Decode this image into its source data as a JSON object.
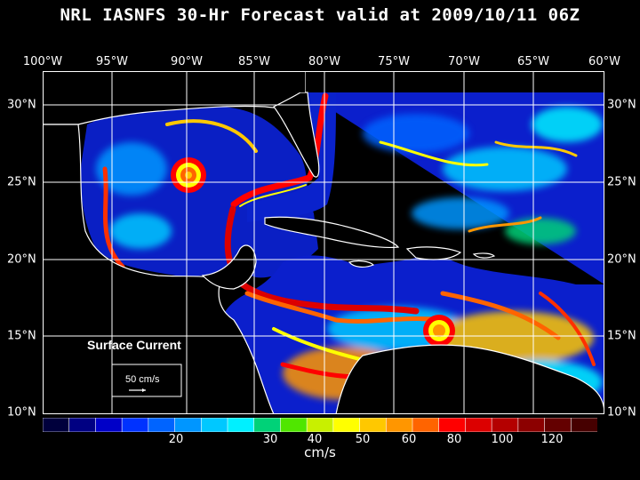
{
  "title": "NRL IASNFS  30-Hr Forecast valid at 2009/10/11 06Z",
  "lon_labels": [
    "100°W",
    "95°W",
    "90°W",
    "85°W",
    "80°W",
    "75°W",
    "70°W",
    "65°W",
    "60°W"
  ],
  "lat_labels": [
    "30°N",
    "25°N",
    "20°N",
    "15°N",
    "10°N"
  ],
  "legend": {
    "label": "Surface Current",
    "ref_vector": "50 cm/s"
  },
  "colorbar": {
    "ticks": [
      "20",
      "30",
      "40",
      "50",
      "60",
      "80",
      "100",
      "120"
    ],
    "units": "cm/s",
    "colors": [
      "#00003c",
      "#000082",
      "#0000c8",
      "#0032ff",
      "#0064ff",
      "#0096ff",
      "#00c8ff",
      "#00f0ff",
      "#00d278",
      "#50e600",
      "#c8f000",
      "#ffff00",
      "#ffc800",
      "#ff9600",
      "#ff6400",
      "#ff0000",
      "#dc0000",
      "#b40000",
      "#8c0000",
      "#640000",
      "#460000"
    ]
  }
}
